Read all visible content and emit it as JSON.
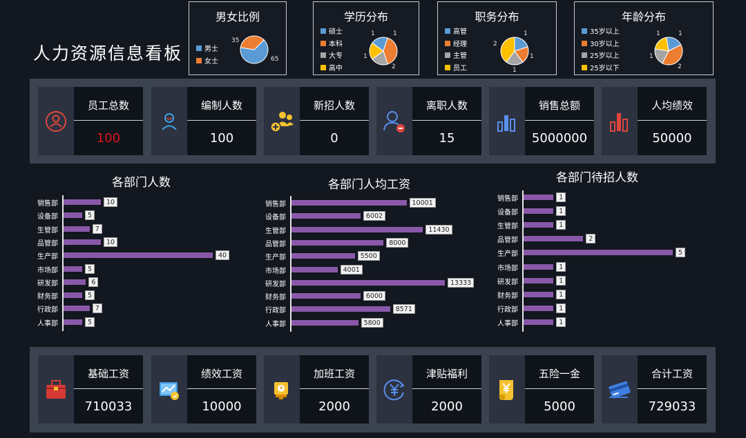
{
  "header": {
    "title": "人力资源信息看板"
  },
  "pies": [
    {
      "id": "gender",
      "title": "男女比例",
      "legend": [
        {
          "label": "男士",
          "color": "#5b9bd5"
        },
        {
          "label": "女士",
          "color": "#ed7d31"
        }
      ],
      "chart_data": {
        "type": "pie",
        "labels": [
          "男士",
          "女士"
        ],
        "values": [
          65,
          35
        ],
        "colors": [
          "#5b9bd5",
          "#ed7d31"
        ]
      },
      "data_labels": [
        "65",
        "35"
      ]
    },
    {
      "id": "education",
      "title": "学历分布",
      "legend": [
        {
          "label": "硕士",
          "color": "#5b9bd5"
        },
        {
          "label": "本科",
          "color": "#ed7d31"
        },
        {
          "label": "大专",
          "color": "#a5a5a5"
        },
        {
          "label": "高中",
          "color": "#ffc000"
        }
      ],
      "chart_data": {
        "type": "pie",
        "labels": [
          "硕士",
          "本科",
          "大专",
          "高中"
        ],
        "values": [
          1,
          2,
          1,
          1
        ],
        "colors": [
          "#5b9bd5",
          "#ed7d31",
          "#a5a5a5",
          "#ffc000"
        ]
      },
      "data_labels": [
        "1",
        "2",
        "1",
        "1"
      ]
    },
    {
      "id": "position",
      "title": "职务分布",
      "legend": [
        {
          "label": "高管",
          "color": "#5b9bd5"
        },
        {
          "label": "经理",
          "color": "#ed7d31"
        },
        {
          "label": "主管",
          "color": "#a5a5a5"
        },
        {
          "label": "员工",
          "color": "#ffc000"
        }
      ],
      "chart_data": {
        "type": "pie",
        "labels": [
          "高管",
          "经理",
          "主管",
          "员工"
        ],
        "values": [
          1,
          1,
          1,
          2
        ],
        "colors": [
          "#5b9bd5",
          "#ed7d31",
          "#a5a5a5",
          "#ffc000"
        ]
      },
      "data_labels": [
        "1",
        "1",
        "1",
        "2"
      ]
    },
    {
      "id": "age",
      "title": "年龄分布",
      "legend": [
        {
          "label": "35岁以上",
          "color": "#5b9bd5"
        },
        {
          "label": "30岁以上",
          "color": "#ed7d31"
        },
        {
          "label": "25岁以上",
          "color": "#a5a5a5"
        },
        {
          "label": "25岁以下",
          "color": "#ffc000"
        }
      ],
      "chart_data": {
        "type": "pie",
        "labels": [
          "35岁以上",
          "30岁以上",
          "25岁以上",
          "25岁以下"
        ],
        "values": [
          1,
          2,
          1,
          1
        ],
        "colors": [
          "#5b9bd5",
          "#ed7d31",
          "#a5a5a5",
          "#ffc000"
        ]
      },
      "data_labels": [
        "1",
        "2",
        "1",
        "1"
      ]
    }
  ],
  "kpis_top": [
    {
      "label": "员工总数",
      "value": "100",
      "icon": "person-circle-icon",
      "value_color": "#e0161c"
    },
    {
      "label": "编制人数",
      "value": "100",
      "icon": "person-icon",
      "value_color": "#ffffff"
    },
    {
      "label": "新招人数",
      "value": "0",
      "icon": "people-add-icon",
      "value_color": "#ffffff"
    },
    {
      "label": "离职人数",
      "value": "15",
      "icon": "person-remove-icon",
      "value_color": "#ffffff"
    },
    {
      "label": "销售总额",
      "value": "5000000",
      "icon": "bar-chart-blue-icon",
      "value_color": "#ffffff"
    },
    {
      "label": "人均绩效",
      "value": "50000",
      "icon": "bar-chart-red-icon",
      "value_color": "#ffffff"
    }
  ],
  "kpis_bottom": [
    {
      "label": "基础工资",
      "value": "710033",
      "icon": "briefcase-icon",
      "value_color": "#ffffff"
    },
    {
      "label": "绩效工资",
      "value": "10000",
      "icon": "performance-chart-icon",
      "value_color": "#ffffff"
    },
    {
      "label": "加班工资",
      "value": "2000",
      "icon": "overtime-clock-icon",
      "value_color": "#ffffff"
    },
    {
      "label": "津贴福利",
      "value": "2000",
      "icon": "yen-exchange-icon",
      "value_color": "#ffffff"
    },
    {
      "label": "五险一金",
      "value": "5000",
      "icon": "yen-scroll-icon",
      "value_color": "#ffffff"
    },
    {
      "label": "合计工资",
      "value": "729033",
      "icon": "credit-card-icon",
      "value_color": "#ffffff"
    }
  ],
  "bar_charts": [
    {
      "id": "headcount",
      "title": "各部门人数",
      "chart_data": {
        "type": "bar",
        "orientation": "horizontal",
        "categories": [
          "销售部",
          "设备部",
          "生管部",
          "品管部",
          "生产部",
          "市场部",
          "研发部",
          "财务部",
          "行政部",
          "人事部"
        ],
        "values": [
          10,
          5,
          7,
          10,
          40,
          5,
          6,
          5,
          7,
          5
        ],
        "xlim": [
          0,
          40
        ],
        "color": "#8a58a8"
      }
    },
    {
      "id": "avg-salary",
      "title": "各部门人均工资",
      "chart_data": {
        "type": "bar",
        "orientation": "horizontal",
        "categories": [
          "销售部",
          "设备部",
          "生管部",
          "品管部",
          "生产部",
          "市场部",
          "研发部",
          "财务部",
          "行政部",
          "人事部"
        ],
        "values": [
          10001,
          6002,
          11430,
          8000,
          5500,
          4001,
          13333,
          6000,
          8571,
          5800
        ],
        "xlim": [
          0,
          13333
        ],
        "color": "#8a58a8"
      }
    },
    {
      "id": "openings",
      "title": "各部门待招人数",
      "chart_data": {
        "type": "bar",
        "orientation": "horizontal",
        "categories": [
          "销售部",
          "设备部",
          "生管部",
          "品管部",
          "生产部",
          "市场部",
          "研发部",
          "财务部",
          "行政部",
          "人事部"
        ],
        "values": [
          1,
          1,
          1,
          2,
          5,
          1,
          1,
          1,
          1,
          1
        ],
        "xlim": [
          0,
          5
        ],
        "color": "#8a58a8"
      }
    }
  ]
}
